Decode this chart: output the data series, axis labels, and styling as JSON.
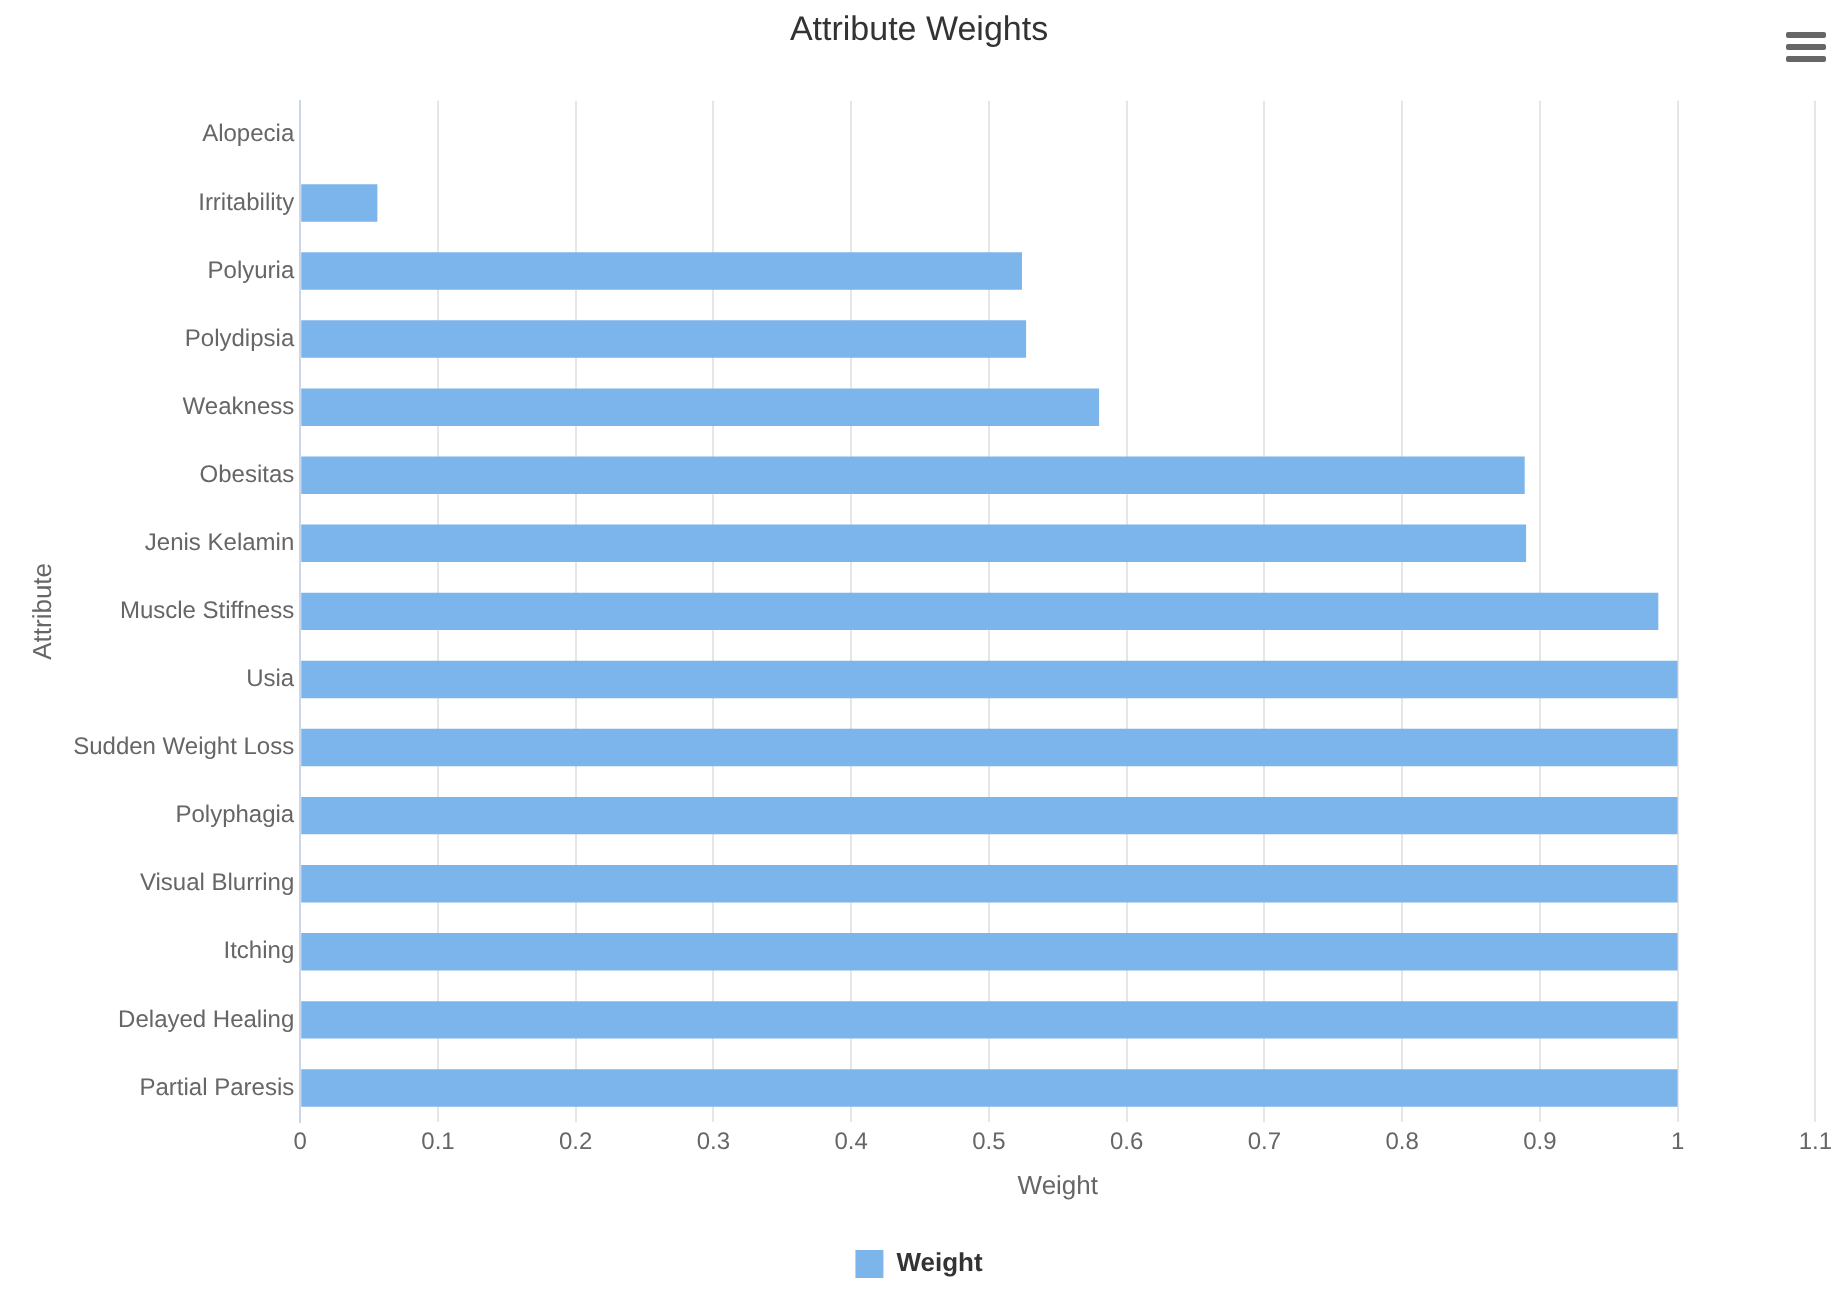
{
  "chart_data": {
    "type": "bar",
    "orientation": "horizontal",
    "title": "Attribute Weights",
    "xlabel": "Weight",
    "ylabel": "Attribute",
    "categories": [
      "Alopecia",
      "Irritability",
      "Polyuria",
      "Polydipsia",
      "Weakness",
      "Obesitas",
      "Jenis Kelamin",
      "Muscle Stiffness",
      "Usia",
      "Sudden Weight Loss",
      "Polyphagia",
      "Visual Blurring",
      "Itching",
      "Delayed Healing",
      "Partial Paresis"
    ],
    "series": [
      {
        "name": "Weight",
        "color": "#7cb5ec",
        "values": [
          0,
          0.056,
          0.524,
          0.527,
          0.58,
          0.889,
          0.89,
          0.986,
          1,
          1,
          1,
          1,
          1,
          1,
          1
        ]
      }
    ],
    "xlim": [
      0,
      1.1
    ],
    "xticks": [
      0,
      0.1,
      0.2,
      0.3,
      0.4,
      0.5,
      0.6,
      0.7,
      0.8,
      0.9,
      1,
      1.1
    ],
    "grid": "x",
    "legend": "bottom"
  }
}
